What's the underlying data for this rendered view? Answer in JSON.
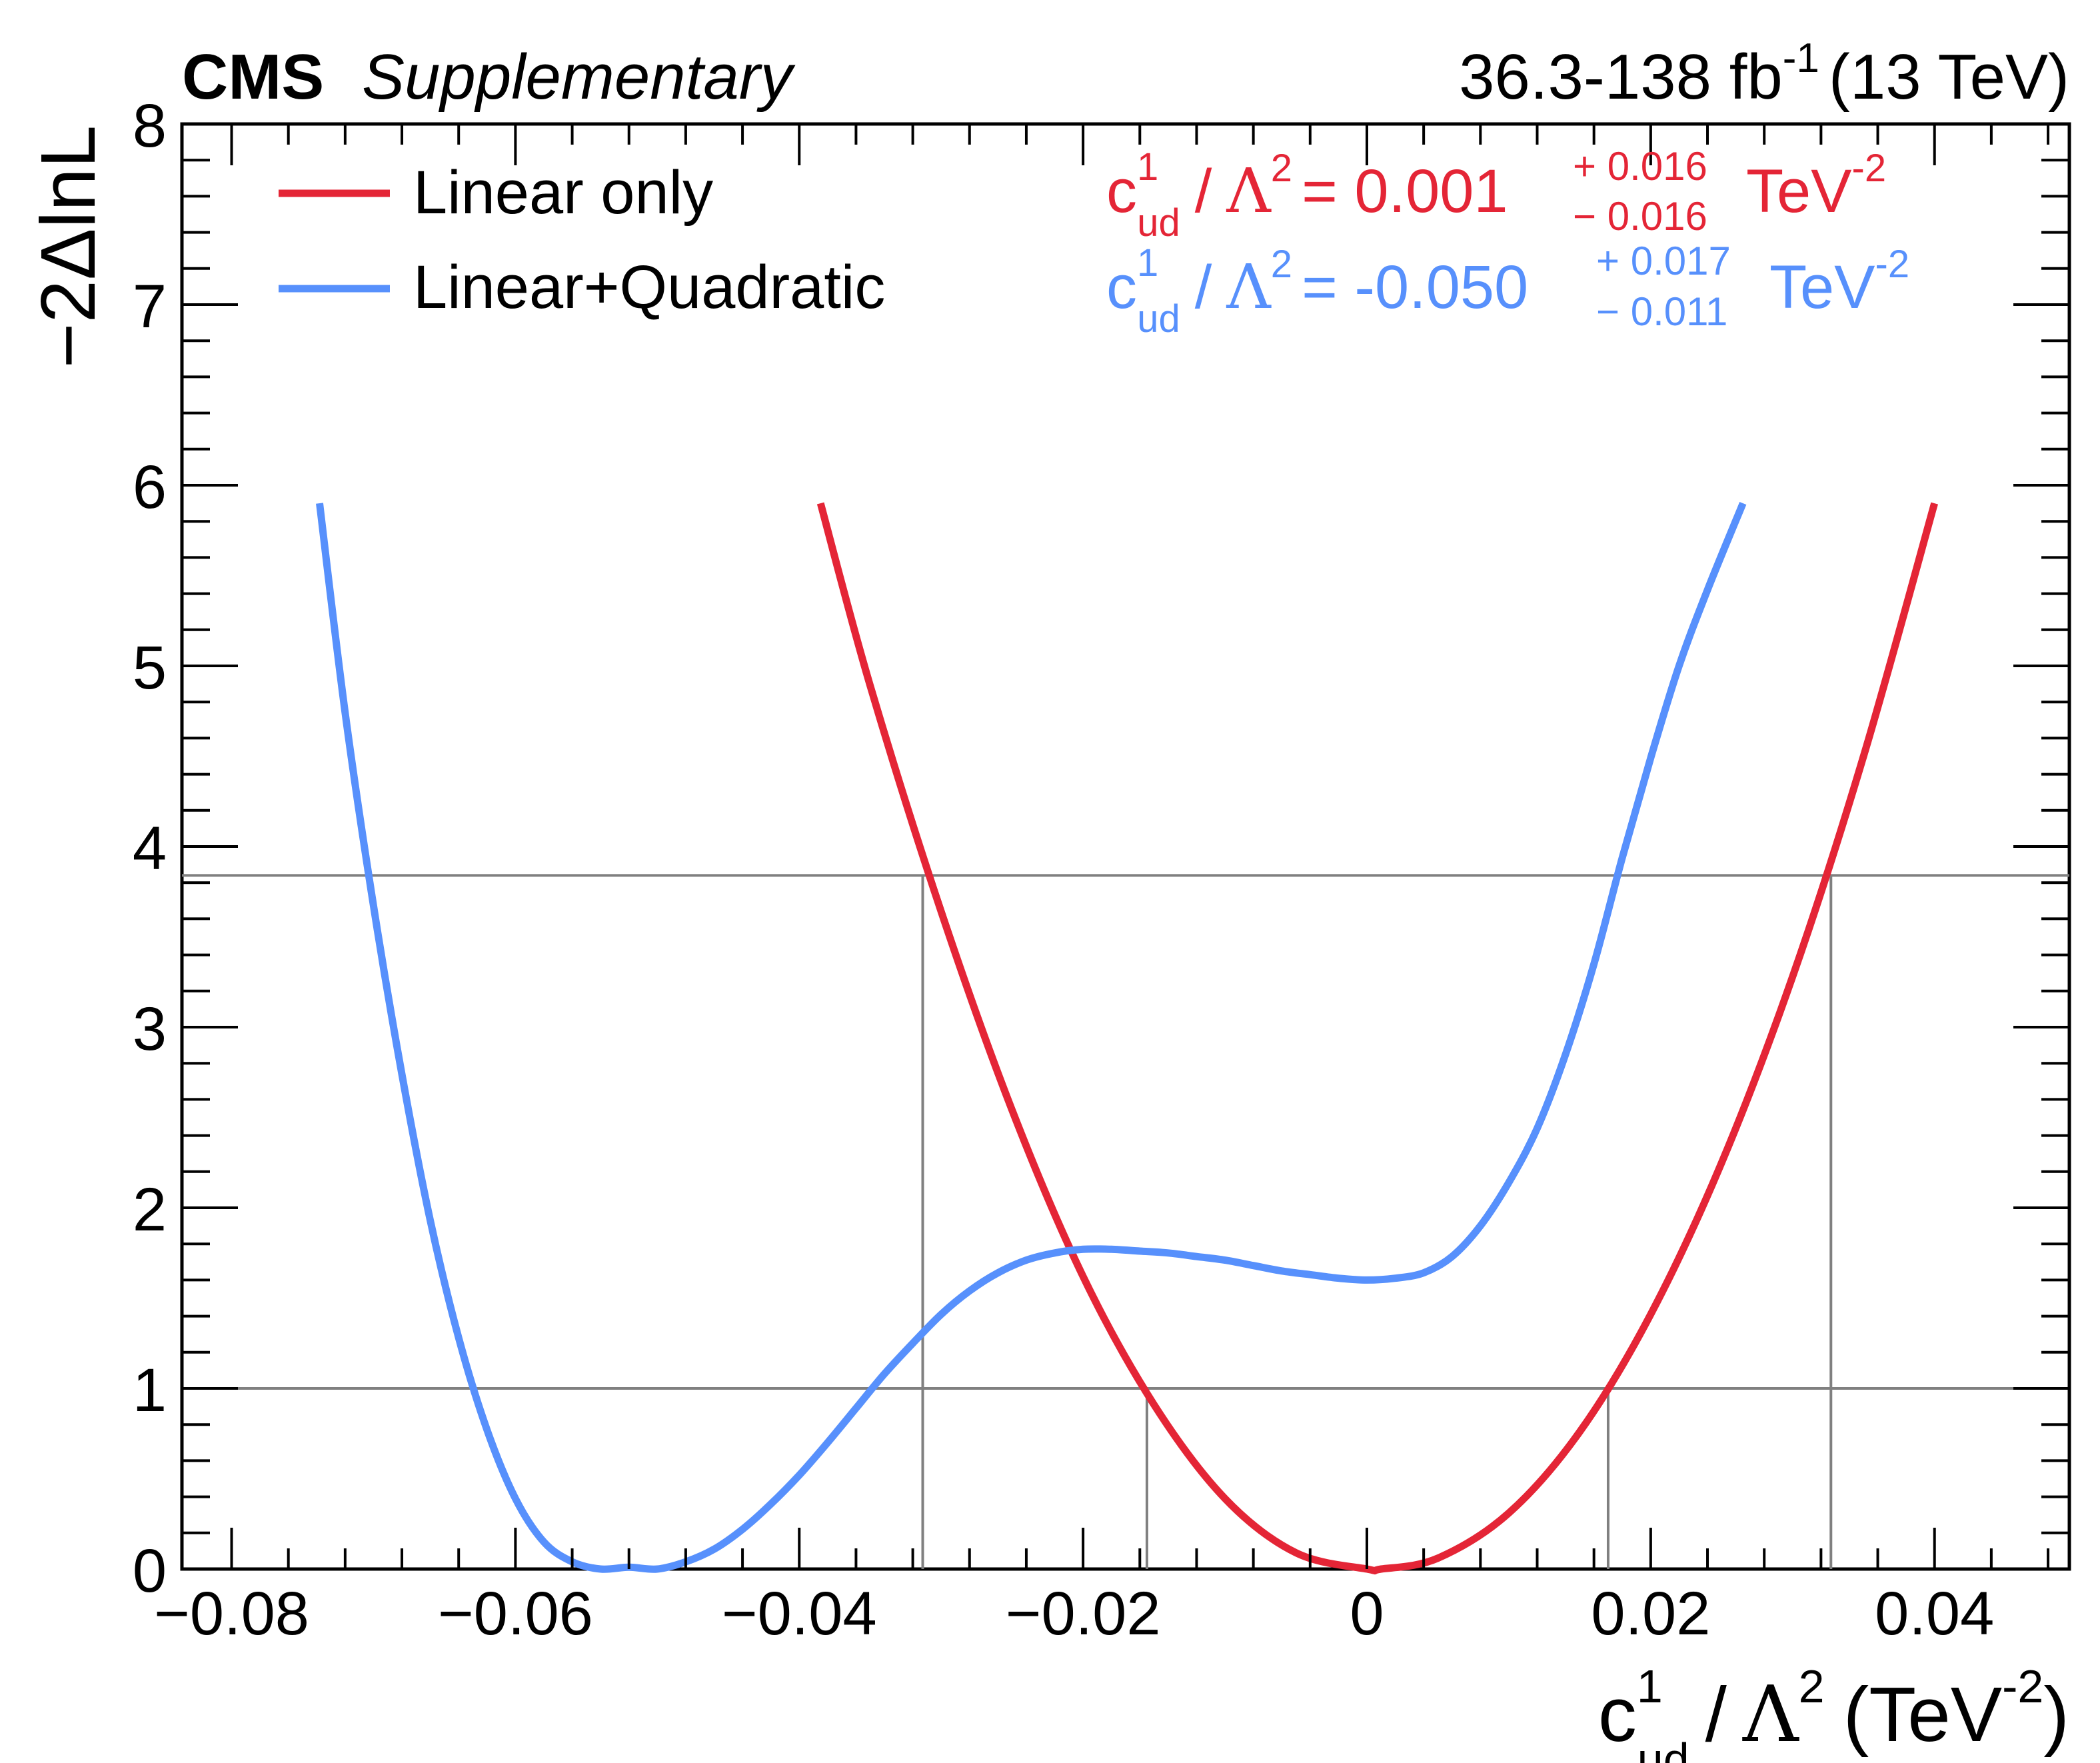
{
  "header": {
    "experiment": "CMS",
    "tag": "Supplementary",
    "lumi": "36.3-138 fb",
    "lumi_exp": "-1",
    "energy": "(13 TeV)"
  },
  "legend": {
    "entries": [
      {
        "label": "Linear only",
        "color": "#e42536"
      },
      {
        "label": "Linear+Quadratic",
        "color": "#5790fc"
      }
    ]
  },
  "annotations": [
    {
      "color": "#e42536",
      "coef": "c",
      "coef_sup": "1",
      "coef_sub": "ud",
      "slash": "/",
      "lambda": "Λ",
      "lambda_sup": "2",
      "eq": "= 0.001",
      "up": "+ 0.016",
      "down": "− 0.016",
      "unit": "TeV",
      "unit_sup": "-2"
    },
    {
      "color": "#5790fc",
      "coef": "c",
      "coef_sup": "1",
      "coef_sub": "ud",
      "slash": "/",
      "lambda": "Λ",
      "lambda_sup": "2",
      "eq": "= -0.050",
      "up": "+ 0.017",
      "down": "− 0.011",
      "unit": "TeV",
      "unit_sup": "-2"
    }
  ],
  "chart_data": {
    "type": "line",
    "xlabel": {
      "base": "c",
      "sup": "1",
      "sub": "ud",
      "slash": "/",
      "lambda": "Λ",
      "lambda_sup": "2",
      "unit_open": "(TeV",
      "unit_sup": "-2",
      "unit_close": ")"
    },
    "ylabel": "−2ΔlnL",
    "xlim": [
      -0.0835,
      0.0495
    ],
    "ylim": [
      0,
      8
    ],
    "xticks": [
      -0.08,
      -0.06,
      -0.04,
      -0.02,
      0,
      0.02,
      0.04
    ],
    "xtick_labels": [
      "−0.08",
      "−0.06",
      "−0.04",
      "−0.02",
      "0",
      "0.02",
      "0.04"
    ],
    "yticks": [
      0,
      1,
      2,
      3,
      4,
      5,
      6,
      7,
      8
    ],
    "ytick_labels": [
      "0",
      "1",
      "2",
      "3",
      "4",
      "5",
      "6",
      "7",
      "8"
    ],
    "reference_lines": {
      "horizontal": [
        1,
        3.84
      ],
      "vertical": [
        {
          "x": -0.0313,
          "y": 3.84
        },
        {
          "x": -0.0155,
          "y": 1
        },
        {
          "x": 0.017,
          "y": 1
        },
        {
          "x": 0.0327,
          "y": 3.84
        }
      ],
      "color": "#808080"
    },
    "series": [
      {
        "name": "Linear only",
        "color": "#e42536",
        "x": [
          -0.0385,
          -0.035,
          -0.03,
          -0.025,
          -0.02,
          -0.015,
          -0.01,
          -0.005,
          0.0,
          0.001,
          0.005,
          0.01,
          0.015,
          0.02,
          0.025,
          0.03,
          0.035,
          0.04
        ],
        "y": [
          5.9,
          4.89,
          3.64,
          2.54,
          1.62,
          0.91,
          0.39,
          0.09,
          0.0,
          0.0,
          0.06,
          0.31,
          0.76,
          1.41,
          2.25,
          3.28,
          4.5,
          5.9
        ]
      },
      {
        "name": "Linear+Quadratic",
        "color": "#5790fc",
        "x": [
          -0.0738,
          -0.072,
          -0.07,
          -0.068,
          -0.066,
          -0.064,
          -0.062,
          -0.06,
          -0.058,
          -0.056,
          -0.054,
          -0.052,
          -0.05,
          -0.048,
          -0.046,
          -0.044,
          -0.042,
          -0.04,
          -0.038,
          -0.036,
          -0.034,
          -0.032,
          -0.03,
          -0.028,
          -0.026,
          -0.024,
          -0.022,
          -0.02,
          -0.018,
          -0.016,
          -0.014,
          -0.012,
          -0.01,
          -0.008,
          -0.006,
          -0.004,
          -0.002,
          0.0,
          0.002,
          0.004,
          0.006,
          0.008,
          0.01,
          0.012,
          0.014,
          0.016,
          0.018,
          0.02,
          0.022,
          0.024,
          0.0265
        ],
        "y": [
          5.9,
          4.74,
          3.67,
          2.74,
          1.93,
          1.28,
          0.77,
          0.39,
          0.15,
          0.04,
          0.0,
          0.01,
          0.0,
          0.04,
          0.11,
          0.22,
          0.36,
          0.52,
          0.7,
          0.89,
          1.08,
          1.25,
          1.41,
          1.54,
          1.64,
          1.71,
          1.75,
          1.77,
          1.77,
          1.76,
          1.75,
          1.73,
          1.71,
          1.68,
          1.65,
          1.63,
          1.61,
          1.6,
          1.61,
          1.64,
          1.73,
          1.9,
          2.14,
          2.44,
          2.85,
          3.35,
          3.94,
          4.49,
          5.0,
          5.42,
          5.9
        ]
      }
    ]
  }
}
